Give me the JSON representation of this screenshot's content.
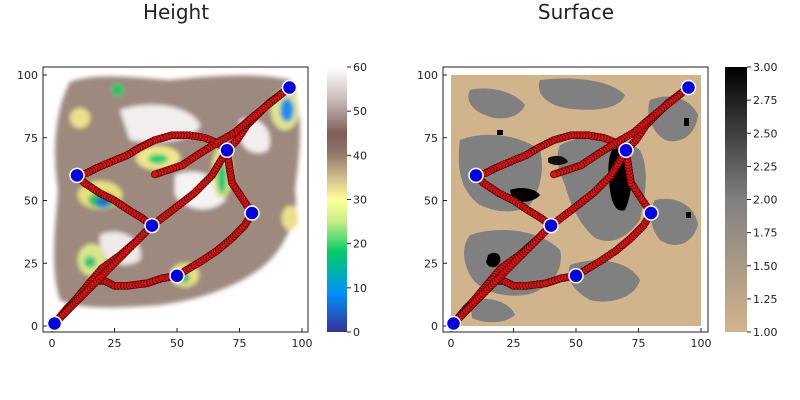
{
  "chart_data": [
    {
      "type": "heatmap",
      "title": "Height",
      "xlim": [
        0,
        100
      ],
      "ylim": [
        0,
        100
      ],
      "xticks": [
        "0",
        "25",
        "50",
        "75",
        "100"
      ],
      "yticks": [
        "0",
        "25",
        "50",
        "75",
        "100"
      ],
      "colorbar": {
        "min": 0,
        "max": 60,
        "ticks": [
          "0",
          "10",
          "20",
          "30",
          "40",
          "50",
          "60"
        ],
        "colormap": "terrain",
        "stops": [
          "#333399",
          "#0094fa",
          "#00cc66",
          "#ccee88",
          "#ffff99",
          "#d2bf8c",
          "#8e7368",
          "#7f5f58",
          "#ccbdbb",
          "#ffffff"
        ]
      },
      "grid": false,
      "legend": "none"
    },
    {
      "type": "heatmap",
      "title": "Surface",
      "xlim": [
        0,
        100
      ],
      "ylim": [
        0,
        100
      ],
      "xticks": [
        "0",
        "25",
        "50",
        "75",
        "100"
      ],
      "yticks": [
        "0",
        "25",
        "50",
        "75",
        "100"
      ],
      "colorbar": {
        "min": 1.0,
        "max": 3.0,
        "ticks": [
          "1.00",
          "1.25",
          "1.50",
          "1.75",
          "2.00",
          "2.25",
          "2.50",
          "2.75",
          "3.00"
        ],
        "colormap": "tan-gray-black",
        "stops": [
          "#d2b48c",
          "#808080",
          "#000000"
        ]
      },
      "grid": false,
      "legend": "none"
    }
  ],
  "waypoints": [
    {
      "x": 1,
      "y": 1
    },
    {
      "x": 10,
      "y": 60
    },
    {
      "x": 40,
      "y": 40
    },
    {
      "x": 50,
      "y": 20
    },
    {
      "x": 70,
      "y": 70
    },
    {
      "x": 80,
      "y": 45
    },
    {
      "x": 95,
      "y": 95
    }
  ],
  "path": [
    [
      1,
      1
    ],
    [
      6,
      7
    ],
    [
      12,
      13
    ],
    [
      18,
      18
    ],
    [
      21,
      18
    ],
    [
      25,
      16
    ],
    [
      30,
      16
    ],
    [
      38,
      17
    ],
    [
      44,
      19
    ],
    [
      50,
      20
    ],
    [
      55,
      23
    ],
    [
      60,
      26
    ],
    [
      66,
      30
    ],
    [
      72,
      35
    ],
    [
      77,
      40
    ],
    [
      80,
      45
    ],
    [
      76,
      51
    ],
    [
      72,
      57
    ],
    [
      71,
      63
    ],
    [
      70,
      70
    ],
    [
      66,
      73
    ],
    [
      61,
      75
    ],
    [
      55,
      76
    ],
    [
      48,
      76
    ],
    [
      41,
      74
    ],
    [
      35,
      71
    ],
    [
      30,
      68
    ],
    [
      25,
      66
    ],
    [
      18,
      63
    ],
    [
      14,
      61
    ],
    [
      10,
      60
    ],
    [
      13,
      57
    ],
    [
      19,
      53
    ],
    [
      25,
      50
    ],
    [
      31,
      46
    ],
    [
      36,
      43
    ],
    [
      40,
      40
    ],
    [
      34,
      34
    ],
    [
      27,
      28
    ],
    [
      20,
      23
    ],
    [
      14,
      16
    ],
    [
      9,
      10
    ],
    [
      5,
      5
    ],
    [
      1,
      1
    ],
    [
      40,
      40
    ],
    [
      48,
      46
    ],
    [
      57,
      53
    ],
    [
      64,
      60
    ],
    [
      70,
      70
    ],
    [
      74,
      74
    ],
    [
      78,
      80
    ],
    [
      82,
      84
    ],
    [
      87,
      89
    ],
    [
      91,
      92
    ],
    [
      95,
      95
    ],
    [
      85,
      87
    ],
    [
      80,
      83
    ],
    [
      73,
      77
    ],
    [
      66,
      73
    ],
    [
      58,
      68
    ],
    [
      52,
      64
    ],
    [
      46,
      62
    ],
    [
      40,
      60
    ]
  ]
}
